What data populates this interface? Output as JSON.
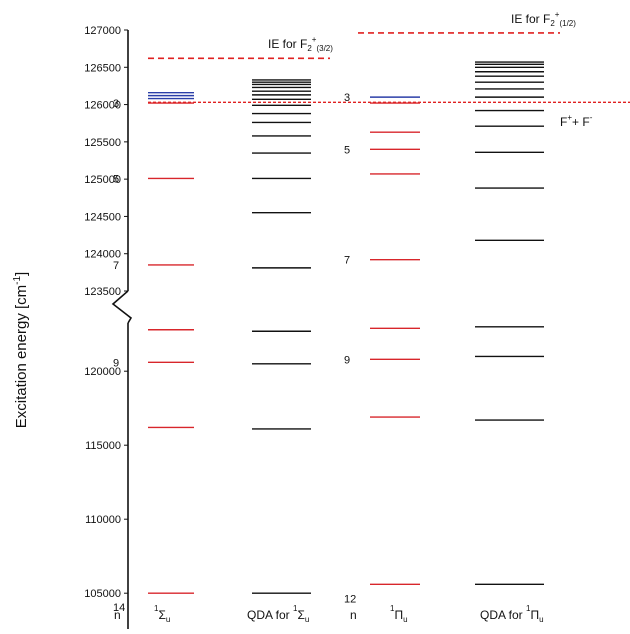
{
  "title": "",
  "axis": {
    "ylabel": "Excitation energy [cm",
    "ylabel_sup": "-1",
    "ylabel_end": "]",
    "upper_ticks": [
      "127000",
      "126500",
      "126000",
      "125500",
      "125000",
      "124500",
      "124000",
      "123500"
    ],
    "lower_ticks": [
      "120000",
      "115000",
      "110000",
      "105000"
    ]
  },
  "labels": {
    "ie_32": {
      "main": "IE for F",
      "sub1": "2",
      "sup": "+",
      "sub2": "(3/2)"
    },
    "ie_12": {
      "main": "IE for F",
      "sub1": "2",
      "sup": "+",
      "sub2": "(1/2)"
    },
    "limit": {
      "a": "F",
      "a_sup": "+",
      "plus": "+ F",
      "b_sup": "-"
    },
    "n_header": "n",
    "col1": {
      "sup": "1",
      "main": "Σ",
      "sub": "u"
    },
    "col2": {
      "prefix": "QDA for ",
      "sup": "1",
      "main": "Σ",
      "sub": "u"
    },
    "col3": {
      "sup": "1",
      "main": "Π",
      "sub": "u"
    },
    "col4": {
      "prefix": "QDA for ",
      "sup": "1",
      "main": "Π",
      "sub": "u"
    },
    "n_sigma": [
      "14",
      "9",
      "7",
      "5",
      "3"
    ],
    "n_pi": [
      "12",
      "9",
      "7",
      "5",
      "3"
    ]
  },
  "chart_data": {
    "type": "energy-level diagram",
    "ylabel": "Excitation energy [cm-1]",
    "axis_break": "between 123500 and ~122000 (lower part uses compressed scale)",
    "ionization_limits": {
      "IE_F2_plus_3_2": 126620,
      "IE_F2_plus_1_2": 126960,
      "F_plus_F_minus": 126030
    },
    "columns": [
      {
        "name": "1Σu",
        "color": "#d8262b",
        "levels": [
          105000,
          116200,
          120600,
          122800,
          123850,
          125010,
          126020
        ],
        "blue_levels": [
          126080,
          126120,
          126160
        ],
        "n_labels": [
          {
            "n": "3",
            "E": 105000
          },
          {
            "n": "5",
            "E": 120600
          },
          {
            "n": "7",
            "E": 123850
          },
          {
            "n": "9",
            "E": 125010
          },
          {
            "n": "14",
            "E": 126020
          }
        ]
      },
      {
        "name": "QDA for 1Σu",
        "color": "#111111",
        "levels": [
          105000,
          116100,
          120500,
          122700,
          123810,
          124550,
          125010,
          125350,
          125580,
          125760,
          125880,
          125990,
          126070,
          126130,
          126180,
          126230,
          126270,
          126300,
          126330
        ]
      },
      {
        "name": "1Πu",
        "color": "#d8262b",
        "levels": [
          105600,
          116900,
          120800,
          122900,
          123920,
          125070,
          125400,
          125630,
          126020
        ],
        "blue_levels": [
          126100
        ],
        "n_labels": [
          {
            "n": "3",
            "E": 105600
          },
          {
            "n": "5",
            "E": 120800
          },
          {
            "n": "7",
            "E": 123920
          },
          {
            "n": "9",
            "E": 125400
          },
          {
            "n": "12",
            "E": 126100
          }
        ]
      },
      {
        "name": "QDA for 1Πu",
        "color": "#111111",
        "levels": [
          105600,
          116700,
          121000,
          123000,
          124180,
          124880,
          125360,
          125710,
          125920,
          126100,
          126210,
          126300,
          126380,
          126440,
          126500,
          126540,
          126570
        ]
      }
    ]
  }
}
